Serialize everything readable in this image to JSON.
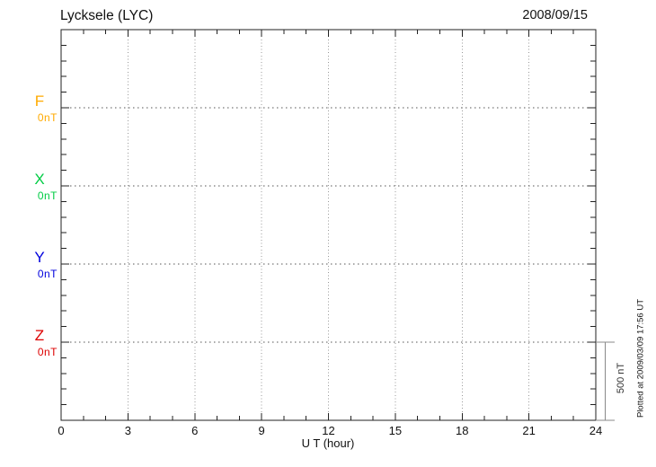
{
  "chart_data": {
    "type": "line",
    "title": "Lycksele (LYC)",
    "date_label": "2008/09/15",
    "xlabel": "U T (hour)",
    "x_range": [
      0,
      24
    ],
    "x_major_tick_step": 3,
    "x_minor_tick_step": 1,
    "x_tick_labels": [
      "0",
      "3",
      "6",
      "9",
      "12",
      "15",
      "18",
      "21",
      "24"
    ],
    "y_minor_divisions": 25,
    "nT_per_minor_division": 100,
    "series": [
      {
        "name": "F",
        "unit_label": "0nT",
        "color": "#FFAA00",
        "baseline_frac": 0.2,
        "values": []
      },
      {
        "name": "X",
        "unit_label": "0nT",
        "color": "#00CC44",
        "baseline_frac": 0.4,
        "values": []
      },
      {
        "name": "Y",
        "unit_label": "0nT",
        "color": "#0000DD",
        "baseline_frac": 0.6,
        "values": []
      },
      {
        "name": "Z",
        "unit_label": "0nT",
        "color": "#DD0000",
        "baseline_frac": 0.8,
        "values": []
      }
    ],
    "scale_bar_label": "500 nT",
    "grid": {
      "vertical_dotted_every_hours": 3,
      "horizontal_dotted_at_series_baselines": true
    },
    "no_data_plotted": true
  },
  "footer": {
    "plotted_at": "Plotted at 2009/03/09 17:56 UT"
  },
  "colors": {
    "axis": "#222222",
    "v_grid": "#999999",
    "h_grid": "#555555",
    "scale_bar": "#8a8a8a",
    "text": "#111111"
  }
}
